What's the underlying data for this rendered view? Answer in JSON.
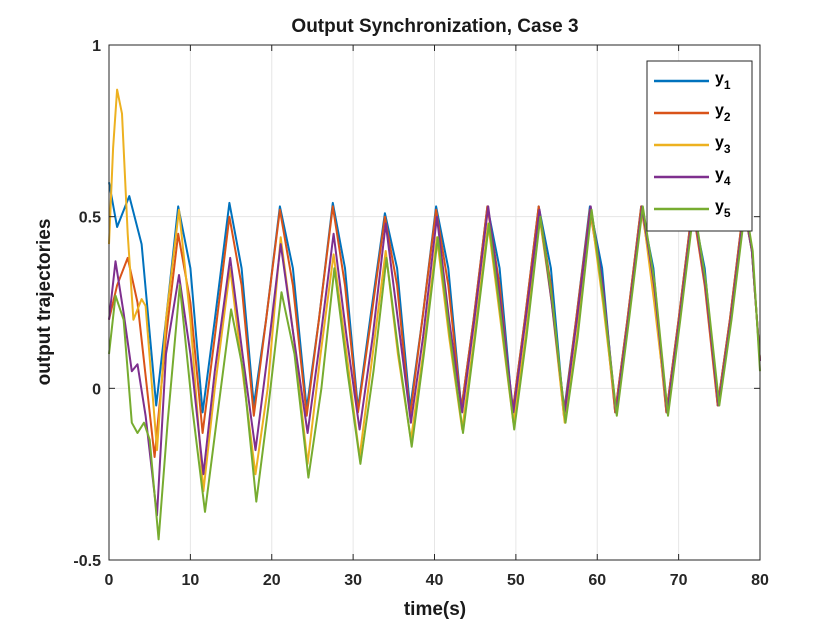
{
  "chart_data": {
    "type": "line",
    "title": "Output Synchronization, Case 3",
    "xlabel": "time(s)",
    "ylabel": "output trajectories",
    "xlim": [
      0,
      80
    ],
    "ylim": [
      -0.5,
      1
    ],
    "xticks": [
      0,
      10,
      20,
      30,
      40,
      50,
      60,
      70,
      80
    ],
    "xtick_labels": [
      "0",
      "10",
      "20",
      "30",
      "40",
      "50",
      "60",
      "70",
      "80"
    ],
    "yticks": [
      -0.5,
      0,
      0.5,
      1
    ],
    "ytick_labels": [
      "-0.5",
      "0",
      "0.5",
      "1"
    ],
    "grid": true,
    "legend_position": "top-right",
    "series": [
      {
        "name": "y1",
        "label_main": "y",
        "label_sub": "1",
        "color": "#0072BD",
        "points": [
          [
            0,
            0.6
          ],
          [
            1,
            0.47
          ],
          [
            2.5,
            0.56
          ],
          [
            4,
            0.42
          ],
          [
            5.8,
            -0.05
          ],
          [
            7,
            0.2
          ],
          [
            8.5,
            0.53
          ],
          [
            10,
            0.35
          ],
          [
            11.5,
            -0.07
          ],
          [
            13,
            0.2
          ],
          [
            14.8,
            0.54
          ],
          [
            16.3,
            0.35
          ],
          [
            17.8,
            -0.05
          ],
          [
            19.3,
            0.2
          ],
          [
            21,
            0.53
          ],
          [
            22.6,
            0.35
          ],
          [
            24.3,
            -0.06
          ],
          [
            25.8,
            0.2
          ],
          [
            27.5,
            0.54
          ],
          [
            29,
            0.35
          ],
          [
            30.6,
            -0.06
          ],
          [
            32.2,
            0.22
          ],
          [
            33.9,
            0.51
          ],
          [
            35.4,
            0.35
          ],
          [
            37,
            -0.06
          ],
          [
            38.5,
            0.2
          ],
          [
            40.2,
            0.53
          ],
          [
            41.7,
            0.35
          ],
          [
            43.3,
            -0.06
          ],
          [
            44.8,
            0.2
          ],
          [
            46.5,
            0.53
          ],
          [
            48,
            0.35
          ],
          [
            49.6,
            -0.07
          ],
          [
            51.1,
            0.2
          ],
          [
            52.8,
            0.53
          ],
          [
            54.3,
            0.35
          ],
          [
            55.9,
            -0.07
          ],
          [
            57.4,
            0.2
          ],
          [
            59.1,
            0.53
          ],
          [
            60.6,
            0.35
          ],
          [
            62.2,
            -0.07
          ],
          [
            63.7,
            0.2
          ],
          [
            65.4,
            0.53
          ],
          [
            66.9,
            0.35
          ],
          [
            68.5,
            -0.07
          ],
          [
            70,
            0.2
          ],
          [
            71.7,
            0.53
          ],
          [
            73.2,
            0.35
          ],
          [
            74.8,
            -0.05
          ],
          [
            76.3,
            0.2
          ],
          [
            78,
            0.53
          ],
          [
            79,
            0.4
          ],
          [
            80,
            0.08
          ]
        ]
      },
      {
        "name": "y2",
        "label_main": "y",
        "label_sub": "2",
        "color": "#D95319",
        "points": [
          [
            0,
            0.2
          ],
          [
            1,
            0.3
          ],
          [
            2.3,
            0.38
          ],
          [
            3.5,
            0.25
          ],
          [
            5.6,
            -0.2
          ],
          [
            7,
            0.15
          ],
          [
            8.5,
            0.45
          ],
          [
            10,
            0.25
          ],
          [
            11.5,
            -0.13
          ],
          [
            13,
            0.15
          ],
          [
            14.8,
            0.5
          ],
          [
            16.3,
            0.3
          ],
          [
            17.8,
            -0.08
          ],
          [
            19.3,
            0.2
          ],
          [
            21,
            0.52
          ],
          [
            22.6,
            0.3
          ],
          [
            24.3,
            -0.08
          ],
          [
            25.8,
            0.2
          ],
          [
            27.5,
            0.53
          ],
          [
            29,
            0.3
          ],
          [
            30.6,
            -0.07
          ],
          [
            32.2,
            0.2
          ],
          [
            33.9,
            0.5
          ],
          [
            35.4,
            0.3
          ],
          [
            37,
            -0.08
          ],
          [
            38.5,
            0.2
          ],
          [
            40.2,
            0.52
          ],
          [
            41.7,
            0.3
          ],
          [
            43.3,
            -0.06
          ],
          [
            44.8,
            0.2
          ],
          [
            46.5,
            0.53
          ],
          [
            48,
            0.3
          ],
          [
            49.6,
            -0.07
          ],
          [
            51.1,
            0.2
          ],
          [
            52.8,
            0.53
          ],
          [
            54.3,
            0.3
          ],
          [
            55.9,
            -0.08
          ],
          [
            57.4,
            0.2
          ],
          [
            59.1,
            0.52
          ],
          [
            60.6,
            0.3
          ],
          [
            62.2,
            -0.07
          ],
          [
            63.7,
            0.2
          ],
          [
            65.4,
            0.53
          ],
          [
            66.9,
            0.3
          ],
          [
            68.5,
            -0.07
          ],
          [
            70,
            0.2
          ],
          [
            71.7,
            0.53
          ],
          [
            73.2,
            0.3
          ],
          [
            74.8,
            -0.05
          ],
          [
            76.3,
            0.2
          ],
          [
            78,
            0.53
          ],
          [
            79,
            0.4
          ],
          [
            80,
            0.08
          ]
        ]
      },
      {
        "name": "y3",
        "label_main": "y",
        "label_sub": "3",
        "color": "#EDB120",
        "points": [
          [
            0,
            0.42
          ],
          [
            0.5,
            0.7
          ],
          [
            1,
            0.87
          ],
          [
            1.6,
            0.8
          ],
          [
            2.3,
            0.45
          ],
          [
            3,
            0.2
          ],
          [
            4,
            0.26
          ],
          [
            4.5,
            0.24
          ],
          [
            5.9,
            -0.18
          ],
          [
            7,
            0.2
          ],
          [
            8.6,
            0.52
          ],
          [
            10,
            0.2
          ],
          [
            11.6,
            -0.3
          ],
          [
            13,
            0.0
          ],
          [
            14.9,
            0.35
          ],
          [
            16.4,
            0.05
          ],
          [
            18,
            -0.25
          ],
          [
            19.5,
            0.0
          ],
          [
            21.1,
            0.44
          ],
          [
            22.7,
            0.15
          ],
          [
            24.4,
            -0.22
          ],
          [
            26,
            0.1
          ],
          [
            27.6,
            0.39
          ],
          [
            29.2,
            0.1
          ],
          [
            30.8,
            -0.2
          ],
          [
            32.4,
            0.1
          ],
          [
            34,
            0.4
          ],
          [
            35.5,
            0.1
          ],
          [
            37.1,
            -0.15
          ],
          [
            38.6,
            0.1
          ],
          [
            40.3,
            0.44
          ],
          [
            41.8,
            0.15
          ],
          [
            43.4,
            -0.12
          ],
          [
            44.9,
            0.15
          ],
          [
            46.6,
            0.48
          ],
          [
            48.1,
            0.2
          ],
          [
            49.7,
            -0.1
          ],
          [
            51.2,
            0.15
          ],
          [
            52.9,
            0.5
          ],
          [
            54.4,
            0.25
          ],
          [
            56,
            -0.1
          ],
          [
            57.5,
            0.15
          ],
          [
            59.2,
            0.52
          ],
          [
            60.7,
            0.25
          ],
          [
            62.3,
            -0.07
          ],
          [
            63.8,
            0.2
          ],
          [
            65.5,
            0.53
          ],
          [
            67,
            0.25
          ],
          [
            68.6,
            -0.07
          ],
          [
            70.1,
            0.2
          ],
          [
            71.8,
            0.53
          ],
          [
            73.3,
            0.3
          ],
          [
            74.9,
            -0.05
          ],
          [
            76.4,
            0.2
          ],
          [
            78.1,
            0.53
          ],
          [
            79,
            0.4
          ],
          [
            80,
            0.08
          ]
        ]
      },
      {
        "name": "y4",
        "label_main": "y",
        "label_sub": "4",
        "color": "#7E2F8E",
        "points": [
          [
            0,
            0.2
          ],
          [
            0.8,
            0.37
          ],
          [
            1.8,
            0.22
          ],
          [
            2.8,
            0.05
          ],
          [
            3.5,
            0.07
          ],
          [
            4.5,
            -0.08
          ],
          [
            5.9,
            -0.37
          ],
          [
            7,
            0.1
          ],
          [
            8.6,
            0.33
          ],
          [
            10,
            0.1
          ],
          [
            11.6,
            -0.25
          ],
          [
            13,
            0.05
          ],
          [
            14.9,
            0.38
          ],
          [
            16.4,
            0.1
          ],
          [
            18,
            -0.18
          ],
          [
            19.5,
            0.1
          ],
          [
            21.1,
            0.42
          ],
          [
            22.7,
            0.15
          ],
          [
            24.4,
            -0.13
          ],
          [
            26,
            0.15
          ],
          [
            27.6,
            0.45
          ],
          [
            29.2,
            0.15
          ],
          [
            30.8,
            -0.12
          ],
          [
            32.4,
            0.15
          ],
          [
            34,
            0.48
          ],
          [
            35.5,
            0.2
          ],
          [
            37.1,
            -0.1
          ],
          [
            38.6,
            0.15
          ],
          [
            40.3,
            0.5
          ],
          [
            41.8,
            0.2
          ],
          [
            43.4,
            -0.07
          ],
          [
            44.9,
            0.2
          ],
          [
            46.6,
            0.53
          ],
          [
            48.1,
            0.25
          ],
          [
            49.7,
            -0.07
          ],
          [
            51.2,
            0.2
          ],
          [
            52.9,
            0.52
          ],
          [
            54.4,
            0.25
          ],
          [
            56,
            -0.07
          ],
          [
            57.5,
            0.2
          ],
          [
            59.2,
            0.53
          ],
          [
            60.7,
            0.3
          ],
          [
            62.3,
            -0.07
          ],
          [
            63.8,
            0.2
          ],
          [
            65.5,
            0.53
          ],
          [
            67,
            0.3
          ],
          [
            68.6,
            -0.07
          ],
          [
            70.1,
            0.2
          ],
          [
            71.8,
            0.53
          ],
          [
            73.3,
            0.3
          ],
          [
            74.9,
            -0.05
          ],
          [
            76.4,
            0.2
          ],
          [
            78.1,
            0.53
          ],
          [
            79,
            0.4
          ],
          [
            80,
            0.08
          ]
        ]
      },
      {
        "name": "y5",
        "label_main": "y",
        "label_sub": "5",
        "color": "#77AC30",
        "points": [
          [
            0,
            0.1
          ],
          [
            0.8,
            0.27
          ],
          [
            1.8,
            0.2
          ],
          [
            2.8,
            -0.1
          ],
          [
            3.5,
            -0.13
          ],
          [
            4.3,
            -0.1
          ],
          [
            5,
            -0.15
          ],
          [
            6.1,
            -0.44
          ],
          [
            7.2,
            -0.1
          ],
          [
            8.7,
            0.3
          ],
          [
            10.2,
            -0.05
          ],
          [
            11.8,
            -0.36
          ],
          [
            13.2,
            -0.1
          ],
          [
            15,
            0.23
          ],
          [
            16.5,
            0.05
          ],
          [
            18.1,
            -0.33
          ],
          [
            19.6,
            -0.05
          ],
          [
            21.2,
            0.28
          ],
          [
            22.8,
            0.1
          ],
          [
            24.5,
            -0.26
          ],
          [
            26.1,
            0.0
          ],
          [
            27.7,
            0.35
          ],
          [
            29.3,
            0.05
          ],
          [
            30.9,
            -0.22
          ],
          [
            32.5,
            0.05
          ],
          [
            34.1,
            0.38
          ],
          [
            35.6,
            0.1
          ],
          [
            37.2,
            -0.17
          ],
          [
            38.7,
            0.1
          ],
          [
            40.4,
            0.44
          ],
          [
            41.9,
            0.15
          ],
          [
            43.5,
            -0.13
          ],
          [
            45,
            0.15
          ],
          [
            46.7,
            0.48
          ],
          [
            48.2,
            0.2
          ],
          [
            49.8,
            -0.12
          ],
          [
            51.3,
            0.15
          ],
          [
            53,
            0.5
          ],
          [
            54.5,
            0.25
          ],
          [
            56.1,
            -0.1
          ],
          [
            57.6,
            0.15
          ],
          [
            59.3,
            0.52
          ],
          [
            60.8,
            0.25
          ],
          [
            62.4,
            -0.08
          ],
          [
            63.9,
            0.2
          ],
          [
            65.6,
            0.53
          ],
          [
            67.1,
            0.3
          ],
          [
            68.7,
            -0.08
          ],
          [
            70.2,
            0.2
          ],
          [
            71.9,
            0.53
          ],
          [
            73.4,
            0.3
          ],
          [
            75,
            -0.05
          ],
          [
            76.5,
            0.2
          ],
          [
            78.2,
            0.53
          ],
          [
            79.1,
            0.4
          ],
          [
            80,
            0.05
          ]
        ]
      }
    ]
  }
}
